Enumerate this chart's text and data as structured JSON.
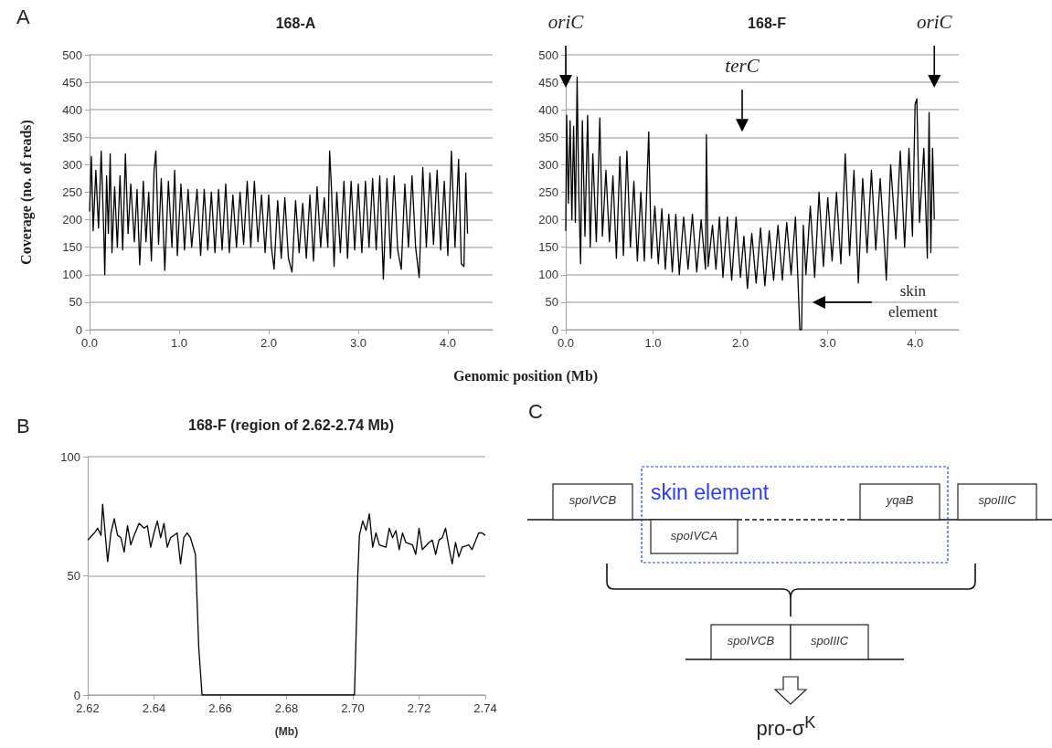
{
  "chart_data": [
    {
      "type": "line",
      "title": "168-A",
      "xlabel": "Genomic position (Mb)",
      "ylabel": "Coverage (no. of reads)",
      "annotations": [
        "A"
      ],
      "grid": "y",
      "marker": "none",
      "xlim": [
        0,
        4.5
      ],
      "xticks": [
        {
          "value": 0,
          "label": "0.0"
        },
        {
          "value": 1,
          "label": "1.0"
        },
        {
          "value": 2,
          "label": "2.0"
        },
        {
          "value": 3,
          "label": "3.0"
        },
        {
          "value": 4,
          "label": "4.0"
        }
      ],
      "ylim": [
        0,
        500
      ],
      "yticks": [
        0,
        50,
        100,
        150,
        200,
        250,
        300,
        350,
        400,
        450,
        500
      ],
      "series": [
        {
          "color": "#000000",
          "x": [
            0,
            0.02,
            0.04,
            0.07,
            0.1,
            0.13,
            0.16,
            0.17,
            0.19,
            0.21,
            0.23,
            0.25,
            0.28,
            0.31,
            0.34,
            0.37,
            0.4,
            0.43,
            0.46,
            0.5,
            0.53,
            0.56,
            0.6,
            0.63,
            0.66,
            0.69,
            0.72,
            0.74,
            0.77,
            0.8,
            0.84,
            0.88,
            0.92,
            0.95,
            0.98,
            1.02,
            1.06,
            1.1,
            1.14,
            1.2,
            1.24,
            1.28,
            1.32,
            1.36,
            1.4,
            1.44,
            1.48,
            1.52,
            1.56,
            1.6,
            1.64,
            1.68,
            1.72,
            1.76,
            1.8,
            1.84,
            1.88,
            1.92,
            1.96,
            2.0,
            2.03,
            2.06,
            2.1,
            2.14,
            2.18,
            2.22,
            2.26,
            2.3,
            2.34,
            2.38,
            2.42,
            2.46,
            2.5,
            2.54,
            2.58,
            2.62,
            2.66,
            2.68,
            2.7,
            2.73,
            2.76,
            2.8,
            2.84,
            2.88,
            2.92,
            2.96,
            3.0,
            3.04,
            3.08,
            3.12,
            3.16,
            3.2,
            3.24,
            3.28,
            3.32,
            3.36,
            3.4,
            3.44,
            3.48,
            3.52,
            3.56,
            3.6,
            3.64,
            3.68,
            3.72,
            3.76,
            3.8,
            3.84,
            3.88,
            3.92,
            3.96,
            4.0,
            4.04,
            4.08,
            4.12,
            4.15,
            4.18,
            4.2,
            4.22
          ],
          "values": [
            215,
            315,
            180,
            290,
            185,
            325,
            170,
            100,
            280,
            175,
            320,
            140,
            260,
            150,
            280,
            145,
            320,
            175,
            265,
            160,
            255,
            118,
            270,
            160,
            250,
            125,
            290,
            325,
            155,
            275,
            108,
            270,
            150,
            290,
            135,
            265,
            145,
            255,
            150,
            255,
            135,
            255,
            145,
            250,
            140,
            255,
            145,
            265,
            140,
            245,
            150,
            250,
            155,
            270,
            150,
            270,
            160,
            245,
            140,
            245,
            150,
            110,
            235,
            130,
            240,
            130,
            105,
            235,
            140,
            230,
            130,
            245,
            125,
            260,
            150,
            240,
            150,
            325,
            260,
            115,
            250,
            140,
            270,
            130,
            270,
            145,
            265,
            140,
            270,
            150,
            275,
            145,
            280,
            92,
            275,
            130,
            280,
            145,
            110,
            265,
            150,
            280,
            150,
            95,
            295,
            150,
            285,
            155,
            290,
            145,
            270,
            135,
            325,
            150,
            310,
            120,
            115,
            285,
            175
          ]
        }
      ]
    },
    {
      "type": "line",
      "title": "168-F",
      "grid": "y",
      "marker": "none",
      "annotations": [
        "oriC",
        "terC",
        "oriC",
        "skin element"
      ],
      "xlim": [
        0,
        4.5
      ],
      "xticks": [
        {
          "value": 0,
          "label": "0.0"
        },
        {
          "value": 1,
          "label": "1.0"
        },
        {
          "value": 2,
          "label": "2.0"
        },
        {
          "value": 3,
          "label": "3.0"
        },
        {
          "value": 4,
          "label": "4.0"
        }
      ],
      "ylim": [
        0,
        500
      ],
      "yticks": [
        0,
        50,
        100,
        150,
        200,
        250,
        300,
        350,
        400,
        450,
        500
      ],
      "series": [
        {
          "color": "#000000",
          "x": [
            0,
            0.01,
            0.03,
            0.05,
            0.07,
            0.09,
            0.11,
            0.13,
            0.15,
            0.17,
            0.19,
            0.22,
            0.25,
            0.28,
            0.31,
            0.35,
            0.39,
            0.42,
            0.46,
            0.5,
            0.54,
            0.58,
            0.62,
            0.66,
            0.7,
            0.74,
            0.78,
            0.82,
            0.86,
            0.9,
            0.95,
            0.98,
            1.02,
            1.06,
            1.1,
            1.14,
            1.18,
            1.22,
            1.26,
            1.3,
            1.35,
            1.4,
            1.45,
            1.5,
            1.55,
            1.6,
            1.61,
            1.63,
            1.68,
            1.72,
            1.76,
            1.8,
            1.85,
            1.9,
            1.95,
            2.0,
            2.04,
            2.08,
            2.13,
            2.18,
            2.23,
            2.28,
            2.33,
            2.38,
            2.43,
            2.48,
            2.53,
            2.58,
            2.63,
            2.66,
            2.68,
            2.7,
            2.72,
            2.75,
            2.8,
            2.85,
            2.9,
            2.95,
            3.0,
            3.05,
            3.1,
            3.15,
            3.2,
            3.25,
            3.3,
            3.35,
            3.4,
            3.45,
            3.5,
            3.55,
            3.6,
            3.65,
            3.67,
            3.72,
            3.78,
            3.83,
            3.88,
            3.93,
            3.97,
            4.0,
            4.02,
            4.05,
            4.1,
            4.14,
            4.16,
            4.18,
            4.2,
            4.22
          ],
          "values": [
            180,
            390,
            230,
            380,
            200,
            370,
            195,
            460,
            240,
            120,
            380,
            170,
            390,
            150,
            320,
            160,
            385,
            170,
            290,
            160,
            280,
            130,
            315,
            135,
            325,
            150,
            270,
            125,
            250,
            125,
            360,
            130,
            225,
            120,
            220,
            110,
            210,
            105,
            210,
            100,
            205,
            110,
            210,
            105,
            200,
            110,
            355,
            115,
            190,
            110,
            205,
            95,
            205,
            90,
            205,
            95,
            170,
            75,
            175,
            85,
            185,
            80,
            180,
            90,
            190,
            90,
            195,
            100,
            205,
            85,
            0,
            0,
            190,
            100,
            225,
            95,
            250,
            115,
            240,
            125,
            250,
            120,
            320,
            135,
            290,
            85,
            275,
            140,
            290,
            145,
            275,
            150,
            90,
            300,
            165,
            325,
            150,
            330,
            170,
            410,
            420,
            195,
            330,
            130,
            395,
            140,
            330,
            200
          ]
        }
      ]
    },
    {
      "type": "line",
      "title": "168-F (region of 2.62-2.74 Mb)",
      "xlabel": "(Mb)",
      "annotations": [
        "B"
      ],
      "grid": "y",
      "marker": "none",
      "xlim": [
        2.62,
        2.74
      ],
      "xticks": [
        2.62,
        2.64,
        2.66,
        2.68,
        {
          "value": 2.7,
          "label": "2.70"
        },
        2.72,
        2.74
      ],
      "ylim": [
        0,
        100
      ],
      "yticks": [
        0,
        50,
        100
      ],
      "series": [
        {
          "color": "#000000",
          "x": [
            2.62,
            2.622,
            2.623,
            2.624,
            2.6245,
            2.626,
            2.627,
            2.628,
            2.629,
            2.63,
            2.631,
            2.632,
            2.633,
            2.634,
            2.6355,
            2.637,
            2.638,
            2.639,
            2.64,
            2.641,
            2.642,
            2.643,
            2.644,
            2.645,
            2.647,
            2.648,
            2.649,
            2.65,
            2.651,
            2.6525,
            2.6535,
            2.6545,
            2.66,
            2.665,
            2.67,
            2.675,
            2.68,
            2.685,
            2.69,
            2.695,
            2.7005,
            2.7015,
            2.702,
            2.703,
            2.704,
            2.705,
            2.706,
            2.707,
            2.708,
            2.71,
            2.711,
            2.712,
            2.713,
            2.714,
            2.715,
            2.716,
            2.718,
            2.719,
            2.72,
            2.721,
            2.723,
            2.724,
            2.725,
            2.726,
            2.727,
            2.728,
            2.729,
            2.73,
            2.731,
            2.732,
            2.733,
            2.735,
            2.736,
            2.738,
            2.739,
            2.74
          ],
          "values": [
            65,
            68,
            70,
            67,
            80,
            56,
            68,
            74,
            67,
            66,
            60,
            71,
            63,
            67,
            72,
            70,
            71,
            62,
            68,
            73,
            66,
            72,
            62,
            66,
            68,
            55,
            66,
            68,
            66,
            59,
            20,
            0,
            0,
            0,
            0,
            0,
            0,
            0,
            0,
            0,
            0,
            50,
            67,
            73,
            69,
            76,
            62,
            68,
            63,
            62,
            70,
            66,
            69,
            61,
            68,
            64,
            63,
            59,
            70,
            61,
            64,
            65,
            59,
            65,
            66,
            70,
            62,
            55,
            64,
            58,
            62,
            63,
            61,
            68,
            68,
            67
          ]
        }
      ]
    },
    {
      "type": "other",
      "annotations": [
        "C",
        "skin element",
        "spoIVCB",
        "spoIVCA",
        "yqaB",
        "spoIIIC",
        "spoIVCB",
        "spoIIIC",
        "pro-σ$^{K}$"
      ]
    }
  ]
}
